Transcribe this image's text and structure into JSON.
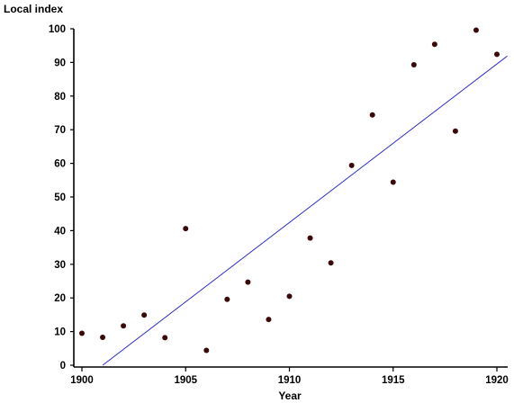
{
  "chart_data": {
    "type": "scatter",
    "title": "",
    "xlabel": "Year",
    "ylabel": "Local index",
    "xlim": [
      1900,
      1920
    ],
    "ylim": [
      0,
      100
    ],
    "x_ticks": [
      "1900",
      "1905",
      "1910",
      "1915",
      "1920"
    ],
    "y_ticks": [
      "0",
      "10",
      "20",
      "30",
      "40",
      "50",
      "60",
      "70",
      "80",
      "90",
      "100"
    ],
    "grid": false,
    "legend": "none",
    "series": [
      {
        "x": [
          1900,
          1901,
          1902,
          1903,
          1904,
          1905,
          1906,
          1907,
          1908,
          1909,
          1910,
          1911,
          1912,
          1913,
          1914,
          1915,
          1916,
          1917,
          1918,
          1919,
          1920
        ],
        "y": [
          9.5,
          8.3,
          11.7,
          14.9,
          8.2,
          40.6,
          4.4,
          19.6,
          24.7,
          13.6,
          20.5,
          37.8,
          30.4,
          59.4,
          74.4,
          54.4,
          89.3,
          95.4,
          69.6,
          99.6,
          92.4
        ],
        "color": "#3a0a0a"
      }
    ],
    "trendline": {
      "type": "linear",
      "x": [
        1901,
        1920.5
      ],
      "y": [
        0,
        91.9
      ],
      "color": "#2f2fc8"
    }
  }
}
